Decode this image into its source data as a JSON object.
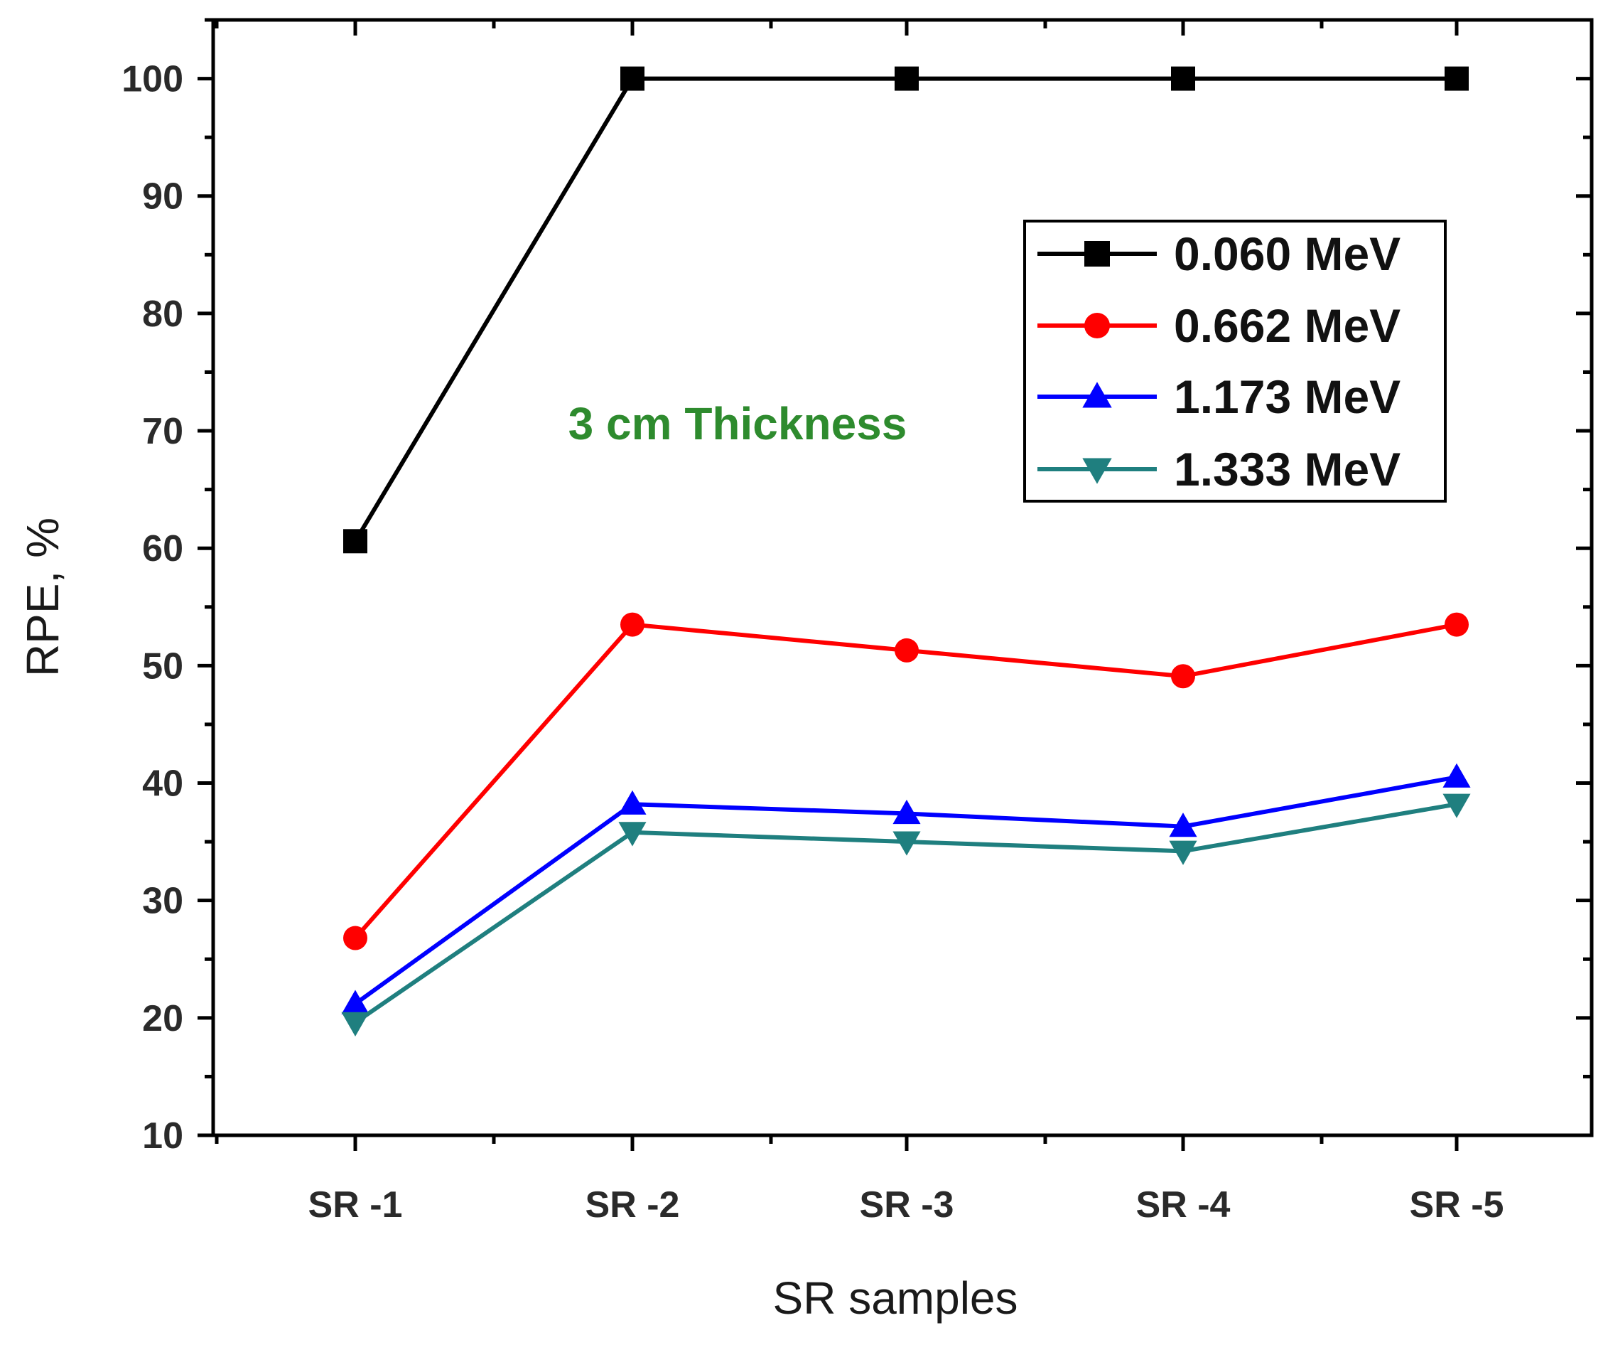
{
  "chart_data": {
    "type": "line",
    "title": "",
    "xlabel": "SR samples",
    "ylabel": "RPE, %",
    "categories": [
      "SR -1",
      "SR -2",
      "SR -3",
      "SR -4",
      "SR -5"
    ],
    "ylim": [
      10,
      105
    ],
    "yticks": [
      10,
      20,
      30,
      40,
      50,
      60,
      70,
      80,
      90,
      100
    ],
    "y_minor_step": 5,
    "grid": false,
    "legend_position": "top-right",
    "annotation": {
      "text": "3 cm Thickness",
      "color": "#2e8b2e"
    },
    "series": [
      {
        "name": "0.060 MeV",
        "marker": "square",
        "color": "#000000",
        "values": [
          60.6,
          100,
          100,
          100,
          100
        ]
      },
      {
        "name": "0.662 MeV",
        "marker": "circle",
        "color": "#ff0000",
        "values": [
          26.8,
          53.5,
          51.3,
          49.1,
          53.5
        ]
      },
      {
        "name": "1.173 MeV",
        "marker": "triangle-up",
        "color": "#0000ff",
        "values": [
          21.2,
          38.2,
          37.4,
          36.3,
          40.5
        ]
      },
      {
        "name": "1.333 MeV",
        "marker": "triangle-down",
        "color": "#1f7f7f",
        "values": [
          19.6,
          35.8,
          35.0,
          34.2,
          38.2
        ]
      }
    ]
  }
}
